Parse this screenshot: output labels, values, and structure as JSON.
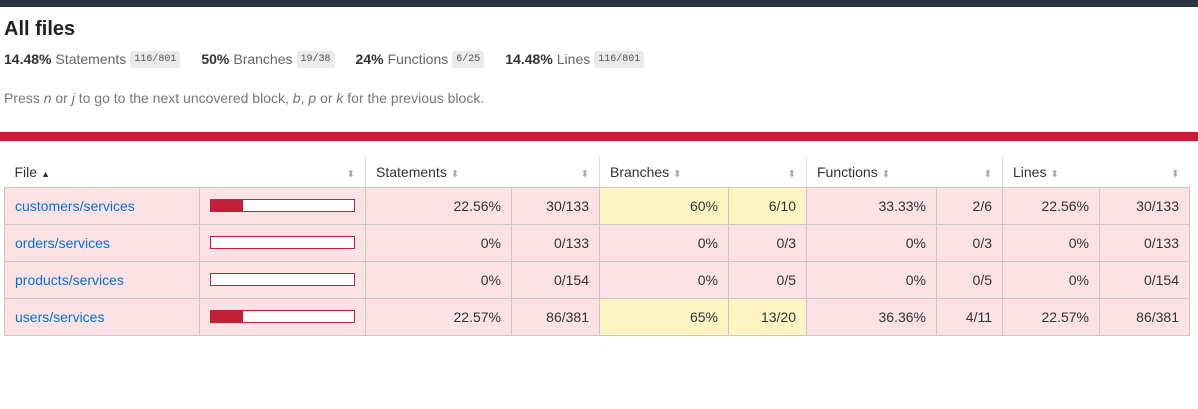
{
  "page": {
    "title": "All files"
  },
  "summary": [
    {
      "pct": "14.48%",
      "label": "Statements",
      "fraction": "116/801"
    },
    {
      "pct": "50%",
      "label": "Branches",
      "fraction": "19/38"
    },
    {
      "pct": "24%",
      "label": "Functions",
      "fraction": "6/25"
    },
    {
      "pct": "14.48%",
      "label": "Lines",
      "fraction": "116/801"
    }
  ],
  "hint": {
    "p1": "Press ",
    "k1": "n",
    "p2": " or ",
    "k2": "j",
    "p3": " to go to the next uncovered block, ",
    "k3": "b",
    "p4": ", ",
    "k4": "p",
    "p5": " or ",
    "k5": "k",
    "p6": " for the previous block."
  },
  "columns": {
    "file": "File",
    "statements": "Statements",
    "branches": "Branches",
    "functions": "Functions",
    "lines": "Lines",
    "sort_asc_glyph": "▲",
    "sort_glyph": "⬍"
  },
  "colors": {
    "low_bg": "#fce1e5",
    "medium_bg": "#fff4c2",
    "bar": "#c21f39",
    "link": "#0074d9",
    "topbar": "#2e3440"
  },
  "rows": [
    {
      "file": "customers/services",
      "coverage": 0.2256,
      "statements_pct": "22.56%",
      "statements_frac": "30/133",
      "branches_pct": "60%",
      "branches_frac": "6/10",
      "functions_pct": "33.33%",
      "functions_frac": "2/6",
      "lines_pct": "22.56%",
      "lines_frac": "30/133"
    },
    {
      "file": "orders/services",
      "coverage": 0,
      "statements_pct": "0%",
      "statements_frac": "0/133",
      "branches_pct": "0%",
      "branches_frac": "0/3",
      "functions_pct": "0%",
      "functions_frac": "0/3",
      "lines_pct": "0%",
      "lines_frac": "0/133"
    },
    {
      "file": "products/services",
      "coverage": 0,
      "statements_pct": "0%",
      "statements_frac": "0/154",
      "branches_pct": "0%",
      "branches_frac": "0/5",
      "functions_pct": "0%",
      "functions_frac": "0/5",
      "lines_pct": "0%",
      "lines_frac": "0/154"
    },
    {
      "file": "users/services",
      "coverage": 0.2257,
      "statements_pct": "22.57%",
      "statements_frac": "86/381",
      "branches_pct": "65%",
      "branches_frac": "13/20",
      "functions_pct": "36.36%",
      "functions_frac": "4/11",
      "lines_pct": "22.57%",
      "lines_frac": "86/381"
    }
  ]
}
